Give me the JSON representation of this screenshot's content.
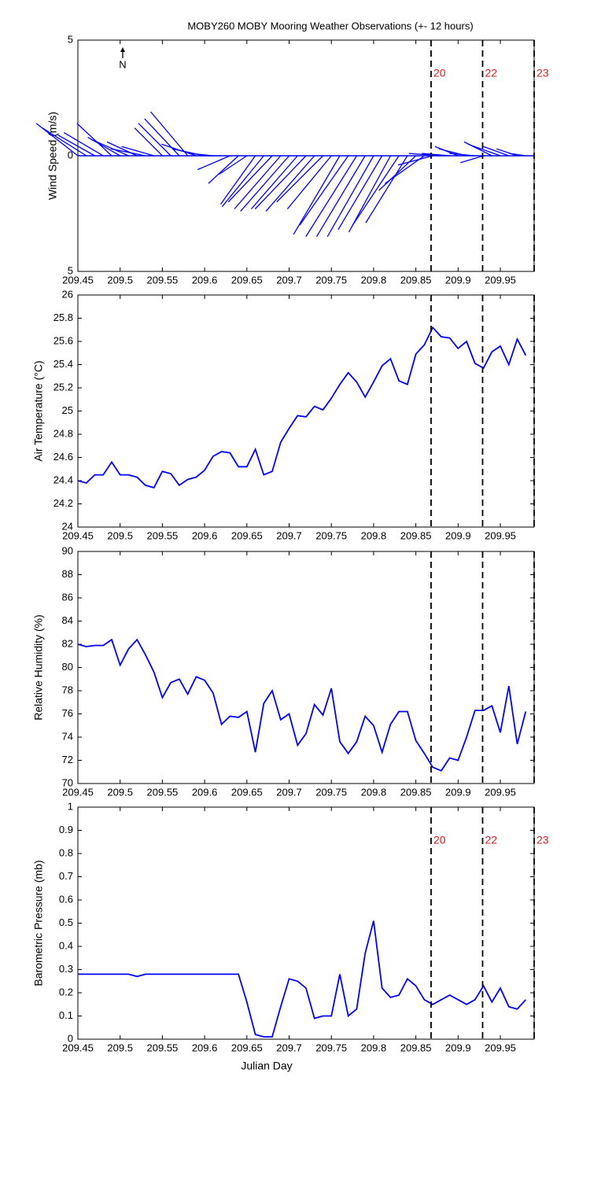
{
  "chart_data": [
    {
      "type": "stick",
      "title": "MOBY260 MOBY Mooring Weather Observations (+- 12 hours)",
      "ylabel": "Wind Speed (m/s)",
      "annotation": "N",
      "color": "#0000ff",
      "xlim": [
        209.45,
        209.99
      ],
      "xticks": [
        209.45,
        209.5,
        209.55,
        209.6,
        209.65,
        209.7,
        209.75,
        209.8,
        209.85,
        209.9,
        209.95
      ],
      "ylim": [
        -5,
        5
      ],
      "yticks": [
        {
          "value": -5,
          "label": "5"
        },
        0,
        5
      ],
      "vlines": [
        209.868,
        209.929,
        209.99
      ],
      "vline_labels": [
        "20",
        "22",
        "23"
      ],
      "x": [
        209.45,
        209.46,
        209.47,
        209.48,
        209.49,
        209.5,
        209.51,
        209.52,
        209.53,
        209.54,
        209.55,
        209.56,
        209.57,
        209.58,
        209.59,
        209.6,
        209.61,
        209.62,
        209.63,
        209.64,
        209.65,
        209.66,
        209.67,
        209.68,
        209.69,
        209.7,
        209.71,
        209.72,
        209.73,
        209.74,
        209.75,
        209.76,
        209.77,
        209.78,
        209.79,
        209.8,
        209.81,
        209.82,
        209.83,
        209.84,
        209.85,
        209.86,
        209.87,
        209.88,
        209.89,
        209.9,
        209.91,
        209.92,
        209.93,
        209.94,
        209.95,
        209.96,
        209.97,
        209.98
      ],
      "u": [
        -1.8,
        -1.9,
        -1.6,
        -1.7,
        -1.5,
        -1.4,
        -1.6,
        -1.3,
        -1.5,
        -1.4,
        -1.2,
        -1.4,
        -1.5,
        -1.6,
        -1.5,
        -1.4,
        -1.0,
        -0.8,
        -1.4,
        -1.3,
        -1.2,
        -1.5,
        -1.8,
        -1.9,
        -2.0,
        -2.1,
        -2.0,
        -2.2,
        -2.1,
        -2.0,
        -1.9,
        -2.0,
        -2.1,
        -2.2,
        -2.1,
        -2.0,
        -1.9,
        -1.8,
        -2.0,
        -1.8,
        -1.6,
        -1.7,
        -1.5,
        -1.4,
        -1.2,
        -1.0,
        -1.2,
        -1.1,
        -1.0,
        -1.2,
        -1.4,
        -1.1,
        -0.9,
        -0.7
      ],
      "v": [
        1.4,
        1.2,
        0.9,
        1.0,
        1.4,
        0.8,
        0.7,
        0.6,
        0.3,
        0.4,
        1.2,
        1.4,
        1.6,
        1.9,
        0.5,
        0.3,
        0.1,
        0.0,
        -0.6,
        -1.2,
        -0.8,
        -2.1,
        -2.2,
        -2.0,
        -2.3,
        -2.4,
        -2.3,
        -2.3,
        -2.4,
        -2.0,
        -2.3,
        -3.4,
        -3.0,
        -3.5,
        -3.5,
        -3.5,
        -3.2,
        -3.3,
        -3.0,
        -2.9,
        -1.5,
        -1.2,
        -0.4,
        0.1,
        0.1,
        0.4,
        0.3,
        0.1,
        -0.3,
        0.6,
        0.5,
        0.4,
        0.3,
        0.1
      ]
    },
    {
      "type": "line",
      "ylabel": "Air Temperature (°C)",
      "color": "#0000ff",
      "xlim": [
        209.45,
        209.99
      ],
      "xticks": [
        209.45,
        209.5,
        209.55,
        209.6,
        209.65,
        209.7,
        209.75,
        209.8,
        209.85,
        209.9,
        209.95
      ],
      "ylim": [
        24,
        26
      ],
      "yticks": [
        24,
        24.2,
        24.4,
        24.6,
        24.8,
        25,
        25.2,
        25.4,
        25.6,
        25.8,
        26
      ],
      "vlines": [
        209.868,
        209.929,
        209.99
      ],
      "x": [
        209.45,
        209.46,
        209.47,
        209.48,
        209.49,
        209.5,
        209.51,
        209.52,
        209.53,
        209.54,
        209.55,
        209.56,
        209.57,
        209.58,
        209.59,
        209.6,
        209.61,
        209.62,
        209.63,
        209.64,
        209.65,
        209.66,
        209.67,
        209.68,
        209.69,
        209.7,
        209.71,
        209.72,
        209.73,
        209.74,
        209.75,
        209.76,
        209.77,
        209.78,
        209.79,
        209.8,
        209.81,
        209.82,
        209.83,
        209.84,
        209.85,
        209.86,
        209.87,
        209.88,
        209.89,
        209.9,
        209.91,
        209.92,
        209.93,
        209.94,
        209.95,
        209.96,
        209.97,
        209.98
      ],
      "values": [
        24.4,
        24.38,
        24.45,
        24.45,
        24.56,
        24.45,
        24.45,
        24.43,
        24.36,
        24.34,
        24.48,
        24.46,
        24.36,
        24.41,
        24.43,
        24.49,
        24.61,
        24.65,
        24.64,
        24.52,
        24.52,
        24.67,
        24.45,
        24.48,
        24.73,
        24.85,
        24.96,
        24.95,
        25.04,
        25.01,
        25.11,
        25.23,
        25.33,
        25.25,
        25.12,
        25.25,
        25.39,
        25.45,
        25.26,
        25.23,
        25.49,
        25.57,
        25.72,
        25.64,
        25.63,
        25.54,
        25.6,
        25.41,
        25.37,
        25.51,
        25.56,
        25.4,
        25.62,
        25.48
      ]
    },
    {
      "type": "line",
      "ylabel": "Relative Humidity (%)",
      "color": "#0000ff",
      "xlim": [
        209.45,
        209.99
      ],
      "xticks": [
        209.45,
        209.5,
        209.55,
        209.6,
        209.65,
        209.7,
        209.75,
        209.8,
        209.85,
        209.9,
        209.95
      ],
      "ylim": [
        70,
        90
      ],
      "yticks": [
        70,
        72,
        74,
        76,
        78,
        80,
        82,
        84,
        86,
        88,
        90
      ],
      "vlines": [
        209.868,
        209.929,
        209.99
      ],
      "x": [
        209.45,
        209.46,
        209.47,
        209.48,
        209.49,
        209.5,
        209.51,
        209.52,
        209.53,
        209.54,
        209.55,
        209.56,
        209.57,
        209.58,
        209.59,
        209.6,
        209.61,
        209.62,
        209.63,
        209.64,
        209.65,
        209.66,
        209.67,
        209.68,
        209.69,
        209.7,
        209.71,
        209.72,
        209.73,
        209.74,
        209.75,
        209.76,
        209.77,
        209.78,
        209.79,
        209.8,
        209.81,
        209.82,
        209.83,
        209.84,
        209.85,
        209.86,
        209.87,
        209.88,
        209.89,
        209.9,
        209.91,
        209.92,
        209.93,
        209.94,
        209.95,
        209.96,
        209.97,
        209.98
      ],
      "values": [
        82.0,
        81.8,
        81.9,
        81.9,
        82.4,
        80.2,
        81.6,
        82.4,
        81.1,
        79.6,
        77.4,
        78.7,
        79.0,
        77.7,
        79.2,
        78.9,
        77.8,
        75.1,
        75.8,
        75.7,
        76.2,
        72.7,
        76.9,
        78.0,
        75.5,
        76.0,
        73.3,
        74.3,
        76.8,
        75.9,
        78.2,
        73.6,
        72.6,
        73.6,
        75.8,
        75.0,
        72.7,
        75.1,
        76.2,
        76.2,
        73.7,
        72.6,
        71.4,
        71.1,
        72.2,
        72.0,
        74.0,
        76.3,
        76.3,
        76.7,
        74.4,
        78.4,
        73.4,
        76.2
      ]
    },
    {
      "type": "line",
      "ylabel": "Barometric Pressure (mb)",
      "xlabel": "Julian Day",
      "color": "#0000ff",
      "xlim": [
        209.45,
        209.99
      ],
      "xticks": [
        209.45,
        209.5,
        209.55,
        209.6,
        209.65,
        209.7,
        209.75,
        209.8,
        209.85,
        209.9,
        209.95
      ],
      "ylim": [
        0,
        1
      ],
      "yticks": [
        0,
        0.1,
        0.2,
        0.3,
        0.4,
        0.5,
        0.6,
        0.7,
        0.8,
        0.9,
        1
      ],
      "vlines": [
        209.868,
        209.929,
        209.99
      ],
      "vline_labels": [
        "20",
        "22",
        "23"
      ],
      "x": [
        209.45,
        209.46,
        209.47,
        209.48,
        209.49,
        209.5,
        209.51,
        209.52,
        209.53,
        209.54,
        209.55,
        209.56,
        209.57,
        209.58,
        209.59,
        209.6,
        209.61,
        209.62,
        209.63,
        209.64,
        209.65,
        209.66,
        209.67,
        209.68,
        209.69,
        209.7,
        209.71,
        209.72,
        209.73,
        209.74,
        209.75,
        209.76,
        209.77,
        209.78,
        209.79,
        209.8,
        209.81,
        209.82,
        209.83,
        209.84,
        209.85,
        209.86,
        209.87,
        209.88,
        209.89,
        209.9,
        209.91,
        209.92,
        209.93,
        209.94,
        209.95,
        209.96,
        209.97,
        209.98
      ],
      "values": [
        0.28,
        0.28,
        0.28,
        0.28,
        0.28,
        0.28,
        0.28,
        0.27,
        0.28,
        0.28,
        0.28,
        0.28,
        0.28,
        0.28,
        0.28,
        0.28,
        0.28,
        0.28,
        0.28,
        0.28,
        0.16,
        0.02,
        0.01,
        0.01,
        0.14,
        0.26,
        0.25,
        0.22,
        0.09,
        0.1,
        0.1,
        0.28,
        0.1,
        0.13,
        0.37,
        0.51,
        0.22,
        0.18,
        0.19,
        0.26,
        0.23,
        0.17,
        0.15,
        0.17,
        0.19,
        0.17,
        0.15,
        0.17,
        0.23,
        0.16,
        0.22,
        0.14,
        0.13,
        0.17
      ]
    }
  ]
}
